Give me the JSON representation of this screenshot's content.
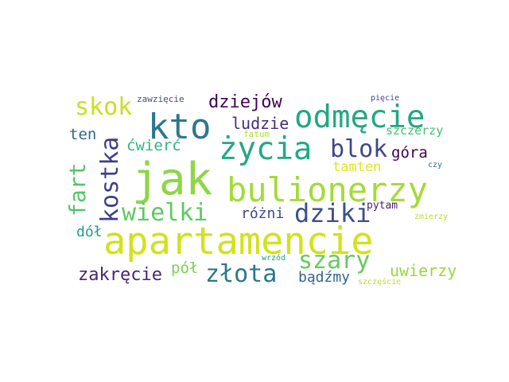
{
  "words": [
    {
      "text": "apartamencie",
      "color": "#d2e21b"
    },
    {
      "text": "jak",
      "color": "#8ed645"
    },
    {
      "text": "bulionerzy",
      "color": "#a4db36"
    },
    {
      "text": "życia",
      "color": "#23a983"
    },
    {
      "text": "kto",
      "color": "#2a788e"
    },
    {
      "text": "odmęcie",
      "color": "#22a785"
    },
    {
      "text": "dziki",
      "color": "#3b518b"
    },
    {
      "text": "blok",
      "color": "#3f4889"
    },
    {
      "text": "kostka",
      "color": "#433e85"
    },
    {
      "text": "wielki",
      "color": "#5ec962"
    },
    {
      "text": "szary",
      "color": "#65cb5e"
    },
    {
      "text": "złota",
      "color": "#2a778e"
    },
    {
      "text": "fart",
      "color": "#54c568"
    },
    {
      "text": "skok",
      "color": "#c8e020"
    },
    {
      "text": "zakręcie",
      "color": "#482475"
    },
    {
      "text": "dziejów",
      "color": "#440154"
    },
    {
      "text": "ludzie",
      "color": "#472d7b"
    },
    {
      "text": "uwierzy",
      "color": "#98d83e"
    },
    {
      "text": "bądźmy",
      "color": "#31668e"
    },
    {
      "text": "tamten",
      "color": "#e5e419"
    },
    {
      "text": "góra",
      "color": "#440154"
    },
    {
      "text": "różni",
      "color": "#3e4a89"
    },
    {
      "text": "ćwierć",
      "color": "#2fb47c"
    },
    {
      "text": "ten",
      "color": "#31688e"
    },
    {
      "text": "pół",
      "color": "#7ad151"
    },
    {
      "text": "dół",
      "color": "#1f9e89"
    },
    {
      "text": "szczerzy",
      "color": "#44bf70"
    },
    {
      "text": "pytam",
      "color": "#481a6c"
    },
    {
      "text": "zawzięcie",
      "color": "#3e4c8a"
    },
    {
      "text": "pięcie",
      "color": "#3f4788"
    },
    {
      "text": "fatum",
      "color": "#addc30"
    },
    {
      "text": "czy",
      "color": "#2c728e"
    },
    {
      "text": "zmierzy",
      "color": "#bade28"
    },
    {
      "text": "wrzód",
      "color": "#1fa088"
    },
    {
      "text": "szczęście",
      "color": "#b5de2b"
    }
  ]
}
